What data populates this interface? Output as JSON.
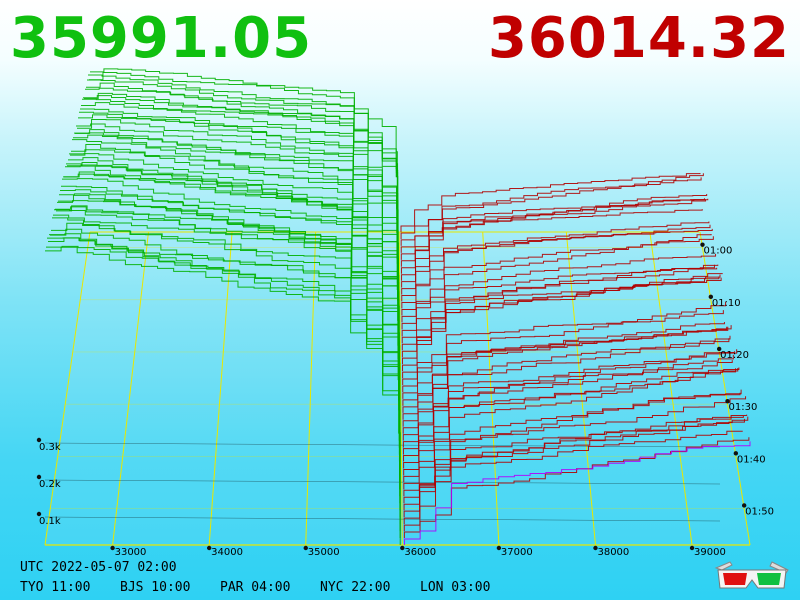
{
  "header": {
    "bid_price": "35991.05",
    "ask_price": "36014.32",
    "bid_color": "#10c010",
    "ask_color": "#c00000"
  },
  "footer": {
    "utc": "UTC 2022-05-07 02:00",
    "zones": [
      {
        "label": "TYO 11:00"
      },
      {
        "label": "BJS 10:00"
      },
      {
        "label": "PAR 04:00"
      },
      {
        "label": "NYC 22:00"
      },
      {
        "label": "LON 03:00"
      }
    ]
  },
  "chart_data": {
    "type": "area",
    "description_free": true,
    "x_ticks": [
      "33000",
      "34000",
      "35000",
      "36000",
      "37000",
      "38000",
      "39000"
    ],
    "y_ticks": [
      "0.1k",
      "0.2k",
      "0.3k"
    ],
    "time_ticks": [
      "01:00",
      "01:10",
      "01:20",
      "01:30",
      "01:40",
      "01:50"
    ],
    "mid_price": 36000,
    "bid_color": "#00b000",
    "ask_color": "#b00000",
    "latest_bid_color": "#b000ff",
    "latest_ask_color": "#b000ff",
    "grid_color": "#e8e800",
    "icon": "3d-glasses-icon"
  }
}
